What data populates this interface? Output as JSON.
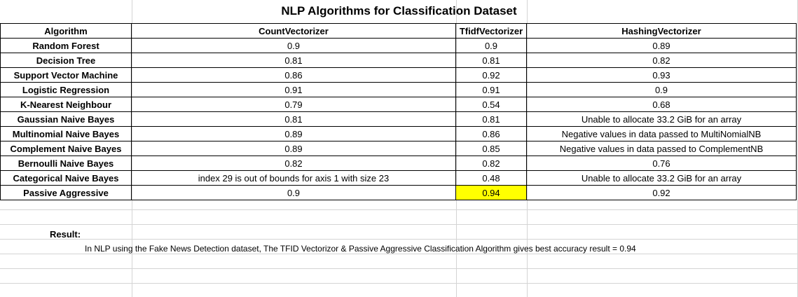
{
  "title": "NLP Algorithms for Classification Dataset",
  "headers": [
    "Algorithm",
    "CountVectorizer",
    "TfidfVectorizer",
    "HashingVectorizer"
  ],
  "rows": [
    {
      "algorithm": "Random Forest",
      "count": "0.9",
      "tfidf": "0.9",
      "hashing": "0.89"
    },
    {
      "algorithm": "Decision Tree",
      "count": "0.81",
      "tfidf": "0.81",
      "hashing": "0.82"
    },
    {
      "algorithm": "Support Vector Machine",
      "count": "0.86",
      "tfidf": "0.92",
      "hashing": "0.93"
    },
    {
      "algorithm": "Logistic Regression",
      "count": "0.91",
      "tfidf": "0.91",
      "hashing": "0.9"
    },
    {
      "algorithm": "K-Nearest Neighbour",
      "count": "0.79",
      "tfidf": "0.54",
      "hashing": "0.68"
    },
    {
      "algorithm": "Gaussian Naive Bayes",
      "count": "0.81",
      "tfidf": "0.81",
      "hashing": "Unable to allocate 33.2 GiB for an array"
    },
    {
      "algorithm": "Multinomial Naive Bayes",
      "count": "0.89",
      "tfidf": "0.86",
      "hashing": "Negative values in data passed to MultiNomialNB"
    },
    {
      "algorithm": "Complement Naive Bayes",
      "count": "0.89",
      "tfidf": "0.85",
      "hashing": "Negative values in data passed to ComplementNB"
    },
    {
      "algorithm": "Bernoulli Naive Bayes",
      "count": "0.82",
      "tfidf": "0.82",
      "hashing": "0.76"
    },
    {
      "algorithm": "Categorical Naive Bayes",
      "count": "index 29 is out of bounds for axis 1 with size 23",
      "tfidf": "0.48",
      "hashing": "Unable to allocate 33.2 GiB for an array"
    },
    {
      "algorithm": "Passive Aggressive",
      "count": "0.9",
      "tfidf": "0.94",
      "hashing": "0.92"
    }
  ],
  "highlight_color": "#ffff00",
  "result": {
    "label": "Result:",
    "text": "In NLP using the Fake News Detection dataset, The TFID  Vectorizor & Passive Aggressive Classification Algorithm gives best accuracy result = 0.94"
  }
}
